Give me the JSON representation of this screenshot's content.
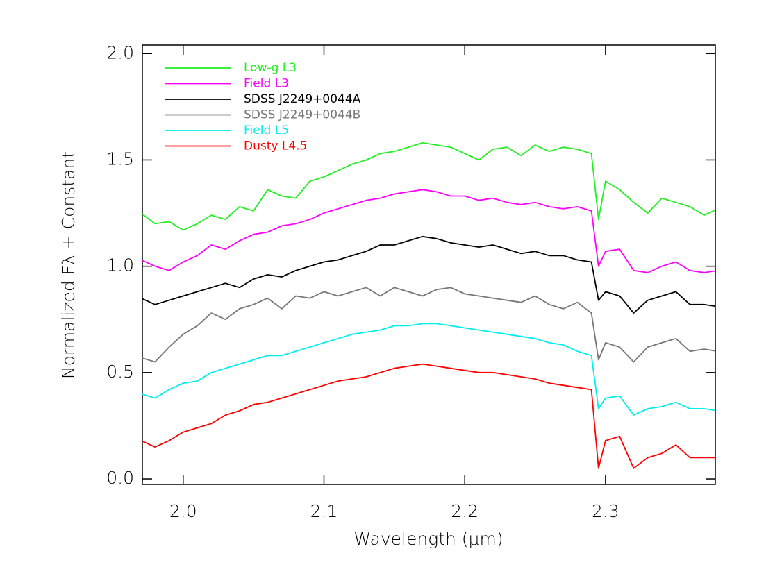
{
  "chart_data": {
    "type": "line",
    "x_label": "Wavelength (μm)",
    "y_label": "Normalized Fλ + Constant",
    "x": [
      1.97,
      1.98,
      1.99,
      2.0,
      2.01,
      2.02,
      2.03,
      2.04,
      2.05,
      2.06,
      2.07,
      2.08,
      2.09,
      2.1,
      2.11,
      2.12,
      2.13,
      2.14,
      2.15,
      2.16,
      2.17,
      2.18,
      2.19,
      2.2,
      2.21,
      2.22,
      2.23,
      2.24,
      2.25,
      2.26,
      2.27,
      2.28,
      2.29,
      2.295,
      2.3,
      2.31,
      2.32,
      2.33,
      2.34,
      2.35,
      2.36,
      2.37,
      2.38
    ],
    "series": [
      {
        "name": "Low-g L3",
        "color": "#22ee22",
        "values": [
          1.25,
          1.2,
          1.21,
          1.17,
          1.2,
          1.24,
          1.22,
          1.28,
          1.26,
          1.36,
          1.33,
          1.32,
          1.4,
          1.42,
          1.45,
          1.48,
          1.5,
          1.53,
          1.54,
          1.56,
          1.58,
          1.57,
          1.56,
          1.53,
          1.5,
          1.55,
          1.56,
          1.52,
          1.57,
          1.54,
          1.56,
          1.55,
          1.53,
          1.22,
          1.4,
          1.36,
          1.3,
          1.25,
          1.32,
          1.3,
          1.28,
          1.24,
          1.27
        ]
      },
      {
        "name": "Field L3",
        "color": "#ff00ff",
        "values": [
          1.03,
          1.0,
          0.98,
          1.02,
          1.05,
          1.1,
          1.08,
          1.12,
          1.15,
          1.16,
          1.19,
          1.2,
          1.22,
          1.25,
          1.27,
          1.29,
          1.31,
          1.32,
          1.34,
          1.35,
          1.36,
          1.35,
          1.33,
          1.33,
          1.31,
          1.32,
          1.3,
          1.29,
          1.3,
          1.28,
          1.27,
          1.28,
          1.26,
          1.0,
          1.07,
          1.08,
          0.98,
          0.97,
          1.0,
          1.02,
          0.98,
          0.97,
          0.98
        ]
      },
      {
        "name": "SDSS J2249+0044A",
        "color": "#000000",
        "values": [
          0.85,
          0.82,
          0.84,
          0.86,
          0.88,
          0.9,
          0.92,
          0.9,
          0.94,
          0.96,
          0.95,
          0.98,
          1.0,
          1.02,
          1.03,
          1.05,
          1.07,
          1.1,
          1.1,
          1.12,
          1.14,
          1.13,
          1.11,
          1.1,
          1.09,
          1.1,
          1.08,
          1.06,
          1.07,
          1.05,
          1.05,
          1.03,
          1.02,
          0.84,
          0.88,
          0.86,
          0.78,
          0.84,
          0.86,
          0.88,
          0.82,
          0.82,
          0.81
        ]
      },
      {
        "name": "SDSS J2249+0044B",
        "color": "#777777",
        "values": [
          0.57,
          0.55,
          0.62,
          0.68,
          0.72,
          0.78,
          0.75,
          0.8,
          0.82,
          0.85,
          0.8,
          0.86,
          0.85,
          0.88,
          0.86,
          0.88,
          0.9,
          0.86,
          0.9,
          0.88,
          0.86,
          0.89,
          0.9,
          0.87,
          0.86,
          0.85,
          0.84,
          0.83,
          0.86,
          0.82,
          0.8,
          0.83,
          0.78,
          0.56,
          0.64,
          0.62,
          0.55,
          0.62,
          0.64,
          0.66,
          0.6,
          0.61,
          0.6
        ]
      },
      {
        "name": "Field L5",
        "color": "#00eeee",
        "values": [
          0.4,
          0.38,
          0.42,
          0.45,
          0.46,
          0.5,
          0.52,
          0.54,
          0.56,
          0.58,
          0.58,
          0.6,
          0.62,
          0.64,
          0.66,
          0.68,
          0.69,
          0.7,
          0.72,
          0.72,
          0.73,
          0.73,
          0.72,
          0.71,
          0.7,
          0.69,
          0.68,
          0.67,
          0.66,
          0.64,
          0.63,
          0.6,
          0.58,
          0.33,
          0.38,
          0.39,
          0.3,
          0.33,
          0.34,
          0.36,
          0.33,
          0.33,
          0.32
        ]
      },
      {
        "name": "Dusty L4.5",
        "color": "#ff0000",
        "values": [
          0.18,
          0.15,
          0.18,
          0.22,
          0.24,
          0.26,
          0.3,
          0.32,
          0.35,
          0.36,
          0.38,
          0.4,
          0.42,
          0.44,
          0.46,
          0.47,
          0.48,
          0.5,
          0.52,
          0.53,
          0.54,
          0.53,
          0.52,
          0.51,
          0.5,
          0.5,
          0.49,
          0.48,
          0.47,
          0.45,
          0.44,
          0.43,
          0.42,
          0.05,
          0.18,
          0.2,
          0.05,
          0.1,
          0.12,
          0.16,
          0.1,
          0.1,
          0.1
        ]
      }
    ],
    "xlim": [
      1.971,
      2.378
    ],
    "ylim": [
      -0.026,
      2.04
    ],
    "xticks": [
      {
        "value": 2.0,
        "label": "2.0"
      },
      {
        "value": 2.1,
        "label": "2.1"
      },
      {
        "value": 2.2,
        "label": "2.2"
      },
      {
        "value": 2.3,
        "label": "2.3"
      }
    ],
    "yticks": [
      {
        "value": 0,
        "label": "0.0"
      },
      {
        "value": 0.5,
        "label": "0.5"
      },
      {
        "value": 1.0,
        "label": "1.0"
      },
      {
        "value": 1.5,
        "label": "1.5"
      },
      {
        "value": 2.0,
        "label": "2.0"
      }
    ],
    "legend": "upper left"
  }
}
